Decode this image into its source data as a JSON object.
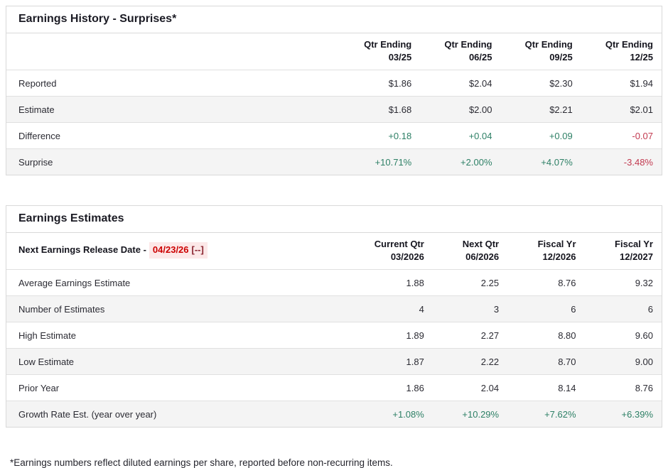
{
  "colors": {
    "positive": "#2e8066",
    "negative": "#c23a50",
    "release_date_text": "#cc0000",
    "release_date_suffix_text": "#8a2430",
    "release_date_background": "#fce8e8",
    "row_stripe": "#f4f4f4",
    "border": "#d9d9d9"
  },
  "earnings_history": {
    "title": "Earnings History - Surprises*",
    "columns": [
      {
        "top": "Qtr Ending",
        "bottom": "03/25"
      },
      {
        "top": "Qtr Ending",
        "bottom": "06/25"
      },
      {
        "top": "Qtr Ending",
        "bottom": "09/25"
      },
      {
        "top": "Qtr Ending",
        "bottom": "12/25"
      }
    ],
    "rows": [
      {
        "label": "Reported",
        "values": [
          "$1.86",
          "$2.04",
          "$2.30",
          "$1.94"
        ],
        "sentiment": [
          "",
          "",
          "",
          ""
        ]
      },
      {
        "label": "Estimate",
        "values": [
          "$1.68",
          "$2.00",
          "$2.21",
          "$2.01"
        ],
        "sentiment": [
          "",
          "",
          "",
          ""
        ]
      },
      {
        "label": "Difference",
        "values": [
          "+0.18",
          "+0.04",
          "+0.09",
          "-0.07"
        ],
        "sentiment": [
          "pos",
          "pos",
          "pos",
          "neg"
        ]
      },
      {
        "label": "Surprise",
        "values": [
          "+10.71%",
          "+2.00%",
          "+4.07%",
          "-3.48%"
        ],
        "sentiment": [
          "pos",
          "pos",
          "pos",
          "neg"
        ]
      }
    ]
  },
  "earnings_estimates": {
    "title": "Earnings Estimates",
    "release": {
      "label": "Next Earnings Release Date -",
      "date": "04/23/26",
      "suffix": "[--]"
    },
    "columns": [
      {
        "top": "Current Qtr",
        "bottom": "03/2026"
      },
      {
        "top": "Next Qtr",
        "bottom": "06/2026"
      },
      {
        "top": "Fiscal Yr",
        "bottom": "12/2026"
      },
      {
        "top": "Fiscal Yr",
        "bottom": "12/2027"
      }
    ],
    "rows": [
      {
        "label": "Average Earnings Estimate",
        "values": [
          "1.88",
          "2.25",
          "8.76",
          "9.32"
        ],
        "sentiment": [
          "",
          "",
          "",
          ""
        ]
      },
      {
        "label": "Number of Estimates",
        "values": [
          "4",
          "3",
          "6",
          "6"
        ],
        "sentiment": [
          "",
          "",
          "",
          ""
        ]
      },
      {
        "label": "High Estimate",
        "values": [
          "1.89",
          "2.27",
          "8.80",
          "9.60"
        ],
        "sentiment": [
          "",
          "",
          "",
          ""
        ]
      },
      {
        "label": "Low Estimate",
        "values": [
          "1.87",
          "2.22",
          "8.70",
          "9.00"
        ],
        "sentiment": [
          "",
          "",
          "",
          ""
        ]
      },
      {
        "label": "Prior Year",
        "values": [
          "1.86",
          "2.04",
          "8.14",
          "8.76"
        ],
        "sentiment": [
          "",
          "",
          "",
          ""
        ]
      },
      {
        "label": "Growth Rate Est. (year over year)",
        "values": [
          "+1.08%",
          "+10.29%",
          "+7.62%",
          "+6.39%"
        ],
        "sentiment": [
          "pos",
          "pos",
          "pos",
          "pos"
        ]
      }
    ]
  },
  "page": {
    "footnote": "*Earnings numbers reflect diluted earnings per share, reported before non-recurring items."
  }
}
